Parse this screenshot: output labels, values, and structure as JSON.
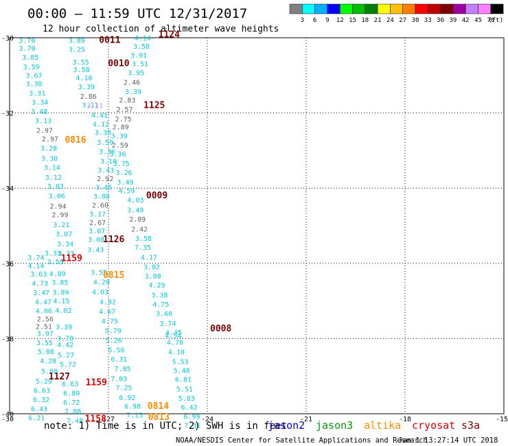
{
  "header": {
    "title": "00:00 – 11:59 UTC 12/31/2017",
    "subtitle": "12 hour collection of altimeter wave heights"
  },
  "colorbar": {
    "unit": "(ft)",
    "colors": [
      "#808080",
      "#00ffff",
      "#00b0ff",
      "#0000ff",
      "#00ff00",
      "#00c000",
      "#008000",
      "#ffff00",
      "#ffc000",
      "#ff8000",
      "#ff0000",
      "#c00000",
      "#800000",
      "#a000a0",
      "#c080ff",
      "#ff80ff",
      "#000000"
    ],
    "labels": [
      "3",
      "6",
      "9",
      "12",
      "15",
      "18",
      "21",
      "24",
      "27",
      "30",
      "33",
      "36",
      "39",
      "42",
      "45",
      "70"
    ]
  },
  "chart_data": {
    "type": "scatter",
    "title": "00:00 – 11:59 UTC 12/31/2017",
    "subtitle": "12 hour collection of altimeter wave heights",
    "xlabel": "",
    "ylabel": "",
    "xlim": [
      -30,
      -15
    ],
    "ylim": [
      -40,
      -30
    ],
    "xticks": [
      "-30",
      "-27",
      "-24",
      "-21",
      "-18",
      "-15"
    ],
    "yticks": [
      "-30",
      "-32",
      "-34",
      "-36",
      "-38",
      "-40"
    ],
    "grid": true,
    "points": [
      {
        "x": -29.47,
        "y": -30.06,
        "v": "3.70",
        "c": "#00c8dc"
      },
      {
        "x": -29.47,
        "y": -30.27,
        "v": "3.70",
        "c": "#00c8dc"
      },
      {
        "x": -29.37,
        "y": -30.51,
        "v": "3.85",
        "c": "#00c8dc"
      },
      {
        "x": -29.34,
        "y": -30.77,
        "v": "3.59",
        "c": "#00c8dc"
      },
      {
        "x": -29.26,
        "y": -30.99,
        "v": "3.67",
        "c": "#00c8dc"
      },
      {
        "x": -29.26,
        "y": -31.21,
        "v": "3.38",
        "c": "#00c8dc"
      },
      {
        "x": -29.16,
        "y": -31.47,
        "v": "3.31",
        "c": "#00c8dc"
      },
      {
        "x": -29.08,
        "y": -31.71,
        "v": "3.34",
        "c": "#00c8dc"
      },
      {
        "x": -29.1,
        "y": -31.95,
        "v": "3.48",
        "c": "#00c8dc"
      },
      {
        "x": -28.98,
        "y": -32.2,
        "v": "3.13",
        "c": "#00c8dc"
      },
      {
        "x": -28.94,
        "y": -32.45,
        "v": "2.97",
        "c": "#606060"
      },
      {
        "x": -28.77,
        "y": -32.68,
        "v": "2.97",
        "c": "#606060"
      },
      {
        "x": -28.81,
        "y": -32.93,
        "v": "3.28",
        "c": "#00c8dc"
      },
      {
        "x": -28.79,
        "y": -33.2,
        "v": "3.30",
        "c": "#00c8dc"
      },
      {
        "x": -28.71,
        "y": -33.44,
        "v": "3.14",
        "c": "#00c8dc"
      },
      {
        "x": -28.67,
        "y": -33.7,
        "v": "3.12",
        "c": "#00c8dc"
      },
      {
        "x": -28.61,
        "y": -33.94,
        "v": "3.03",
        "c": "#00c8dc"
      },
      {
        "x": -28.57,
        "y": -34.2,
        "v": "3.06",
        "c": "#00c8dc"
      },
      {
        "x": -28.53,
        "y": -34.47,
        "v": "2.94",
        "c": "#606060"
      },
      {
        "x": -28.47,
        "y": -34.7,
        "v": "2.99",
        "c": "#606060"
      },
      {
        "x": -28.43,
        "y": -34.96,
        "v": "3.21",
        "c": "#00c8dc"
      },
      {
        "x": -28.35,
        "y": -35.21,
        "v": "3.07",
        "c": "#00c8dc"
      },
      {
        "x": -28.31,
        "y": -35.47,
        "v": "3.34",
        "c": "#00c8dc"
      },
      {
        "x": -28.29,
        "y": -35.73,
        "v": "3.33",
        "c": "#00c8dc"
      },
      {
        "x": -29.2,
        "y": -35.84,
        "v": "3.74",
        "c": "#00c8dc"
      },
      {
        "x": -29.2,
        "y": -36.06,
        "v": "4.14",
        "c": "#00c8dc"
      },
      {
        "x": -29.12,
        "y": -36.28,
        "v": "3.63",
        "c": "#00c8dc"
      },
      {
        "x": -29.08,
        "y": -36.52,
        "v": "4.73",
        "c": "#00c8dc"
      },
      {
        "x": -29.04,
        "y": -36.77,
        "v": "3.47",
        "c": "#00c8dc"
      },
      {
        "x": -28.98,
        "y": -37.02,
        "v": "4.47",
        "c": "#00c8dc"
      },
      {
        "x": -28.96,
        "y": -37.25,
        "v": "4.06",
        "c": "#00c8dc"
      },
      {
        "x": -28.92,
        "y": -37.47,
        "v": "2.56",
        "c": "#606060"
      },
      {
        "x": -28.96,
        "y": -37.67,
        "v": "2.51",
        "c": "#606060"
      },
      {
        "x": -28.92,
        "y": -37.86,
        "v": "3.97",
        "c": "#00c8dc"
      },
      {
        "x": -28.94,
        "y": -38.1,
        "v": "3.55",
        "c": "#00c8dc"
      },
      {
        "x": -28.9,
        "y": -38.34,
        "v": "5.08",
        "c": "#00c8dc"
      },
      {
        "x": -28.83,
        "y": -38.59,
        "v": "4.28",
        "c": "#00c8dc"
      },
      {
        "x": -28.79,
        "y": -38.86,
        "v": "5.08",
        "c": "#00c8dc"
      },
      {
        "x": -28.96,
        "y": -39.12,
        "v": "5.29",
        "c": "#00c8dc"
      },
      {
        "x": -29.02,
        "y": -39.37,
        "v": "6.63",
        "c": "#00c8dc"
      },
      {
        "x": -29.04,
        "y": -39.62,
        "v": "6.32",
        "c": "#00c8dc"
      },
      {
        "x": -29.1,
        "y": -39.86,
        "v": "6.43",
        "c": "#00c8dc"
      },
      {
        "x": -29.18,
        "y": -40.1,
        "v": "6.21",
        "c": "#00c8dc"
      },
      {
        "x": -28.69,
        "y": -35.72,
        "v": "3.33",
        "c": "#00c8dc"
      },
      {
        "x": -28.61,
        "y": -35.95,
        "v": "3.59",
        "c": "#00c8dc"
      },
      {
        "x": -28.55,
        "y": -36.27,
        "v": "4.89",
        "c": "#00c8dc"
      },
      {
        "x": -28.47,
        "y": -36.5,
        "v": "3.85",
        "c": "#00c8dc"
      },
      {
        "x": -28.45,
        "y": -36.76,
        "v": "3.89",
        "c": "#00c8dc"
      },
      {
        "x": -28.43,
        "y": -36.99,
        "v": "4.15",
        "c": "#00c8dc"
      },
      {
        "x": -28.37,
        "y": -37.24,
        "v": "4.02",
        "c": "#00c8dc"
      },
      {
        "x": -28.35,
        "y": -37.68,
        "v": "3.39",
        "c": "#00c8dc"
      },
      {
        "x": -28.31,
        "y": -37.98,
        "v": "3.70",
        "c": "#00c8dc"
      },
      {
        "x": -28.31,
        "y": -38.16,
        "v": "4.42",
        "c": "#00c8dc"
      },
      {
        "x": -28.29,
        "y": -38.43,
        "v": "5.27",
        "c": "#00c8dc"
      },
      {
        "x": -28.23,
        "y": -38.68,
        "v": "5.72",
        "c": "#00c8dc"
      },
      {
        "x": -28.16,
        "y": -39.2,
        "v": "6.63",
        "c": "#00c8dc"
      },
      {
        "x": -28.12,
        "y": -39.44,
        "v": "6.89",
        "c": "#00c8dc"
      },
      {
        "x": -28.12,
        "y": -39.69,
        "v": "6.72",
        "c": "#00c8dc"
      },
      {
        "x": -28.08,
        "y": -39.93,
        "v": "7.88",
        "c": "#00c8dc"
      },
      {
        "x": -28.02,
        "y": -40.17,
        "v": "7.48",
        "c": "#00c8dc"
      },
      {
        "x": -27.96,
        "y": -30.06,
        "v": "3.89",
        "c": "#00c8dc"
      },
      {
        "x": -27.96,
        "y": -30.3,
        "v": "3.25",
        "c": "#00c8dc"
      },
      {
        "x": -27.84,
        "y": -30.64,
        "v": "3.55",
        "c": "#00c8dc"
      },
      {
        "x": -27.82,
        "y": -30.84,
        "v": "3.58",
        "c": "#00c8dc"
      },
      {
        "x": -27.74,
        "y": -31.06,
        "v": "4.10",
        "c": "#00c8dc"
      },
      {
        "x": -27.67,
        "y": -31.3,
        "v": "3.39",
        "c": "#00c8dc"
      },
      {
        "x": -27.61,
        "y": -31.55,
        "v": "2.86",
        "c": "#606060"
      },
      {
        "x": -27.55,
        "y": -31.78,
        "v": "3.11",
        "c": "#00c8dc"
      },
      {
        "x": -27.27,
        "y": -32.05,
        "v": "4.41",
        "c": "#00c8dc"
      },
      {
        "x": -27.23,
        "y": -32.29,
        "v": "4.12",
        "c": "#00c8dc"
      },
      {
        "x": -27.17,
        "y": -32.51,
        "v": "3.38",
        "c": "#00c8dc"
      },
      {
        "x": -27.1,
        "y": -32.77,
        "v": "3.59",
        "c": "#00c8dc"
      },
      {
        "x": -27.04,
        "y": -33.02,
        "v": "3.36",
        "c": "#00c8dc"
      },
      {
        "x": -27.0,
        "y": -33.28,
        "v": "3.10",
        "c": "#00c8dc"
      },
      {
        "x": -27.08,
        "y": -33.51,
        "v": "3.43",
        "c": "#00c8dc"
      },
      {
        "x": -27.1,
        "y": -33.74,
        "v": "2.92",
        "c": "#606060"
      },
      {
        "x": -27.14,
        "y": -33.97,
        "v": "3.45",
        "c": "#00c8dc"
      },
      {
        "x": -27.21,
        "y": -34.21,
        "v": "3.88",
        "c": "#00c8dc"
      },
      {
        "x": -27.25,
        "y": -34.44,
        "v": "2.60",
        "c": "#606060"
      },
      {
        "x": -27.33,
        "y": -34.68,
        "v": "3.17",
        "c": "#00c8dc"
      },
      {
        "x": -27.33,
        "y": -34.91,
        "v": "2.67",
        "c": "#606060"
      },
      {
        "x": -27.35,
        "y": -35.13,
        "v": "3.07",
        "c": "#00c8dc"
      },
      {
        "x": -27.37,
        "y": -35.36,
        "v": "3.08",
        "c": "#00c8dc"
      },
      {
        "x": -27.39,
        "y": -35.63,
        "v": "3.43",
        "c": "#00c8dc"
      },
      {
        "x": -27.29,
        "y": -36.23,
        "v": "3.55",
        "c": "#00c8dc"
      },
      {
        "x": -27.21,
        "y": -36.49,
        "v": "4.20",
        "c": "#00c8dc"
      },
      {
        "x": -27.25,
        "y": -36.75,
        "v": "4.03",
        "c": "#00c8dc"
      },
      {
        "x": -27.02,
        "y": -37.02,
        "v": "4.92",
        "c": "#00c8dc"
      },
      {
        "x": -27.04,
        "y": -37.27,
        "v": "4.67",
        "c": "#00c8dc"
      },
      {
        "x": -26.96,
        "y": -37.53,
        "v": "4.75",
        "c": "#00c8dc"
      },
      {
        "x": -26.86,
        "y": -37.78,
        "v": "5.79",
        "c": "#00c8dc"
      },
      {
        "x": -26.84,
        "y": -38.04,
        "v": "5.26",
        "c": "#00c8dc"
      },
      {
        "x": -26.76,
        "y": -38.29,
        "v": "5.56",
        "c": "#00c8dc"
      },
      {
        "x": -26.68,
        "y": -38.54,
        "v": "6.31",
        "c": "#00c8dc"
      },
      {
        "x": -26.57,
        "y": -38.8,
        "v": "7.05",
        "c": "#00c8dc"
      },
      {
        "x": -26.68,
        "y": -39.06,
        "v": "7.03",
        "c": "#00c8dc"
      },
      {
        "x": -26.53,
        "y": -39.3,
        "v": "7.25",
        "c": "#00c8dc"
      },
      {
        "x": -26.43,
        "y": -39.56,
        "v": "6.92",
        "c": "#00c8dc"
      },
      {
        "x": -26.27,
        "y": -39.79,
        "v": "6.98",
        "c": "#00c8dc"
      },
      {
        "x": -26.2,
        "y": -40.03,
        "v": "7.13",
        "c": "#00c8dc"
      },
      {
        "x": -25.96,
        "y": -30.0,
        "v": "4.14",
        "c": "#00c8dc"
      },
      {
        "x": -26.0,
        "y": -30.22,
        "v": "3.58",
        "c": "#00c8dc"
      },
      {
        "x": -26.08,
        "y": -30.46,
        "v": "3.91",
        "c": "#00c8dc"
      },
      {
        "x": -26.04,
        "y": -30.68,
        "v": "3.51",
        "c": "#00c8dc"
      },
      {
        "x": -26.16,
        "y": -30.92,
        "v": "3.95",
        "c": "#00c8dc"
      },
      {
        "x": -26.29,
        "y": -31.18,
        "v": "2.46",
        "c": "#606060"
      },
      {
        "x": -26.25,
        "y": -31.42,
        "v": "3.39",
        "c": "#00c8dc"
      },
      {
        "x": -26.43,
        "y": -31.65,
        "v": "2.83",
        "c": "#606060"
      },
      {
        "x": -26.51,
        "y": -31.9,
        "v": "2.57",
        "c": "#606060"
      },
      {
        "x": -26.55,
        "y": -32.15,
        "v": "2.75",
        "c": "#606060"
      },
      {
        "x": -26.63,
        "y": -32.36,
        "v": "2.89",
        "c": "#606060"
      },
      {
        "x": -26.67,
        "y": -32.6,
        "v": "3.39",
        "c": "#00c8dc"
      },
      {
        "x": -26.65,
        "y": -32.85,
        "v": "2.59",
        "c": "#606060"
      },
      {
        "x": -26.72,
        "y": -33.08,
        "v": "3.36",
        "c": "#00c8dc"
      },
      {
        "x": -26.61,
        "y": -33.34,
        "v": "3.75",
        "c": "#00c8dc"
      },
      {
        "x": -26.53,
        "y": -33.58,
        "v": "3.26",
        "c": "#00c8dc"
      },
      {
        "x": -26.49,
        "y": -33.83,
        "v": "3.49",
        "c": "#00c8dc"
      },
      {
        "x": -26.45,
        "y": -34.06,
        "v": "4.59",
        "c": "#00c8dc"
      },
      {
        "x": -26.18,
        "y": -34.31,
        "v": "4.03",
        "c": "#00c8dc"
      },
      {
        "x": -26.18,
        "y": -34.57,
        "v": "3.49",
        "c": "#00c8dc"
      },
      {
        "x": -26.12,
        "y": -34.82,
        "v": "2.89",
        "c": "#606060"
      },
      {
        "x": -26.06,
        "y": -35.08,
        "v": "2.42",
        "c": "#606060"
      },
      {
        "x": -25.94,
        "y": -35.33,
        "v": "3.58",
        "c": "#00c8dc"
      },
      {
        "x": -25.96,
        "y": -35.57,
        "v": "7.35",
        "c": "#00c8dc"
      },
      {
        "x": -25.77,
        "y": -35.83,
        "v": "4.17",
        "c": "#00c8dc"
      },
      {
        "x": -25.69,
        "y": -36.09,
        "v": "3.02",
        "c": "#00c8dc"
      },
      {
        "x": -25.65,
        "y": -36.33,
        "v": "3.08",
        "c": "#00c8dc"
      },
      {
        "x": -25.53,
        "y": -36.57,
        "v": "4.29",
        "c": "#00c8dc"
      },
      {
        "x": -25.45,
        "y": -36.83,
        "v": "3.38",
        "c": "#00c8dc"
      },
      {
        "x": -25.41,
        "y": -37.08,
        "v": "4.75",
        "c": "#00c8dc"
      },
      {
        "x": -25.31,
        "y": -37.33,
        "v": "3.60",
        "c": "#00c8dc"
      },
      {
        "x": -25.2,
        "y": -37.59,
        "v": "3.74",
        "c": "#00c8dc"
      },
      {
        "x": -25.02,
        "y": -37.83,
        "v": "4.45",
        "c": "#00c8dc"
      },
      {
        "x": -25.04,
        "y": -37.91,
        "v": "4.54",
        "c": "#00c8dc"
      },
      {
        "x": -24.98,
        "y": -38.09,
        "v": "4.70",
        "c": "#00c8dc"
      },
      {
        "x": -24.94,
        "y": -38.35,
        "v": "4.10",
        "c": "#00c8dc"
      },
      {
        "x": -24.82,
        "y": -38.6,
        "v": "5.53",
        "c": "#00c8dc"
      },
      {
        "x": -24.78,
        "y": -38.84,
        "v": "5.48",
        "c": "#00c8dc"
      },
      {
        "x": -24.73,
        "y": -39.08,
        "v": "6.81",
        "c": "#00c8dc"
      },
      {
        "x": -24.69,
        "y": -39.33,
        "v": "5.51",
        "c": "#00c8dc"
      },
      {
        "x": -24.63,
        "y": -39.58,
        "v": "5.83",
        "c": "#00c8dc"
      },
      {
        "x": -24.55,
        "y": -39.82,
        "v": "6.42",
        "c": "#00c8dc"
      },
      {
        "x": -24.47,
        "y": -40.06,
        "v": "6.99",
        "c": "#00c8dc"
      },
      {
        "x": -24.45,
        "y": -40.3,
        "v": "7.31",
        "c": "#00c8dc"
      },
      {
        "x": -27.41,
        "y": -31.8,
        "v": "3.11",
        "c": "#ee82ee"
      }
    ],
    "track_labels": [
      {
        "x": -26.96,
        "y": -30.05,
        "text": "0011",
        "c": "#7a0000"
      },
      {
        "x": -25.16,
        "y": -29.9,
        "text": "1124",
        "c": "#7a0000"
      },
      {
        "x": -26.69,
        "y": -30.67,
        "text": "0010",
        "c": "#7a0000"
      },
      {
        "x": -25.61,
        "y": -31.78,
        "text": "1125",
        "c": "#7a0000"
      },
      {
        "x": -28.0,
        "y": -32.7,
        "text": "0816",
        "c": "#ff8c00"
      },
      {
        "x": -25.53,
        "y": -34.18,
        "text": "0009",
        "c": "#7a0000"
      },
      {
        "x": -26.84,
        "y": -35.35,
        "text": "1126",
        "c": "#7a0000"
      },
      {
        "x": -28.12,
        "y": -35.85,
        "text": "1159",
        "c": "#e00000"
      },
      {
        "x": -26.84,
        "y": -36.3,
        "text": "0815",
        "c": "#ff8c00"
      },
      {
        "x": -23.59,
        "y": -37.72,
        "text": "0008",
        "c": "#7a0000"
      },
      {
        "x": -28.49,
        "y": -39.0,
        "text": "1127",
        "c": "#7a0000"
      },
      {
        "x": -27.37,
        "y": -39.15,
        "text": "1159",
        "c": "#e00000"
      },
      {
        "x": -25.49,
        "y": -39.78,
        "text": "0814",
        "c": "#ff8c00"
      },
      {
        "x": -25.47,
        "y": -40.07,
        "text": "0813",
        "c": "#ff8c00"
      },
      {
        "x": -27.39,
        "y": -40.12,
        "text": "1158",
        "c": "#e00000"
      }
    ]
  },
  "footer": {
    "note": "note: 1) Time is in UTC; 2) SWH is in feet",
    "satellites": [
      {
        "name": "jason2",
        "color": "#0000dd"
      },
      {
        "name": "jason3",
        "color": "#009900"
      },
      {
        "name": "altika",
        "color": "#ff8c00"
      },
      {
        "name": "cryosat",
        "color": "#e00000"
      },
      {
        "name": "s3a",
        "color": "#7a0000"
      }
    ],
    "credit_left": "NOAA/NESDIS Center for Satellite Applications and Research",
    "credit_right": "Jan  1 13:27:14 UTC 2018"
  }
}
